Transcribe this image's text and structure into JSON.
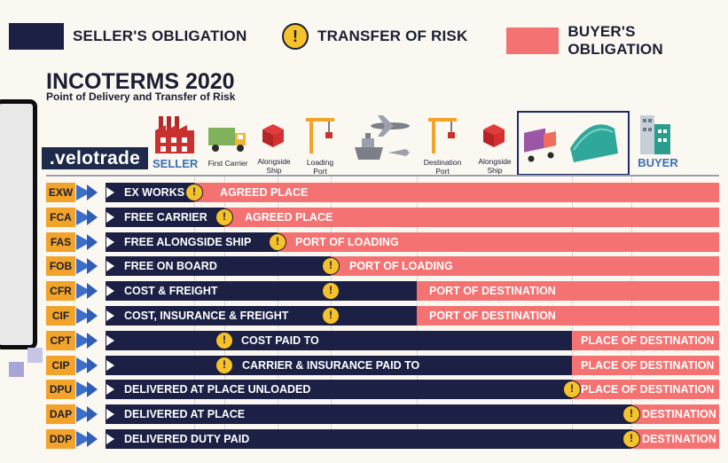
{
  "legend": {
    "seller": {
      "label": "SELLER'S OBLIGATION",
      "color": "#1b2044"
    },
    "risk": {
      "label": "TRANSFER OF RISK",
      "icon": "warning-icon"
    },
    "buyer": {
      "label": "BUYER'S OBLIGATION",
      "color": "#f47272"
    }
  },
  "header": {
    "title": "INCOTERMS 2020",
    "subtitle": "Point of Delivery and Transfer of Risk",
    "brand": ".velotrade"
  },
  "locations": {
    "seller": "SELLER",
    "first_carrier": "First Carrier",
    "alongside_ship_1": "Alongside Ship",
    "loading_port": "Loading Port",
    "destination_port": "Destination Port",
    "alongside_ship_2": "Alongside Ship",
    "buyer": "BUYER"
  },
  "terms": [
    {
      "code": "EXW",
      "seller_text": "EX WORKS",
      "buyer_text": "AGREED PLACE"
    },
    {
      "code": "FCA",
      "seller_text": "FREE CARRIER",
      "buyer_text": "AGREED PLACE"
    },
    {
      "code": "FAS",
      "seller_text": "FREE ALONGSIDE SHIP",
      "buyer_text": "PORT OF LOADING"
    },
    {
      "code": "FOB",
      "seller_text": "FREE ON BOARD",
      "buyer_text": "PORT OF LOADING"
    },
    {
      "code": "CFR",
      "seller_text": "COST & FREIGHT",
      "buyer_text": "PORT OF DESTINATION"
    },
    {
      "code": "CIF",
      "seller_text": "COST, INSURANCE & FREIGHT",
      "buyer_text": "PORT OF DESTINATION"
    },
    {
      "code": "CPT",
      "seller_text": "COST PAID TO",
      "buyer_text": "PLACE OF DESTINATION"
    },
    {
      "code": "CIP",
      "seller_text": "CARRIER & INSURANCE PAID TO",
      "buyer_text": "PLACE OF DESTINATION"
    },
    {
      "code": "DPU",
      "seller_text": "DELIVERED AT PLACE UNLOADED",
      "buyer_text": "PLACE OF DESTINATION"
    },
    {
      "code": "DAP",
      "seller_text": "DELIVERED AT PLACE",
      "buyer_text": "DESTINATION"
    },
    {
      "code": "DDP",
      "seller_text": "DELIVERED DUTY PAID",
      "buyer_text": "DESTINATION"
    }
  ]
}
